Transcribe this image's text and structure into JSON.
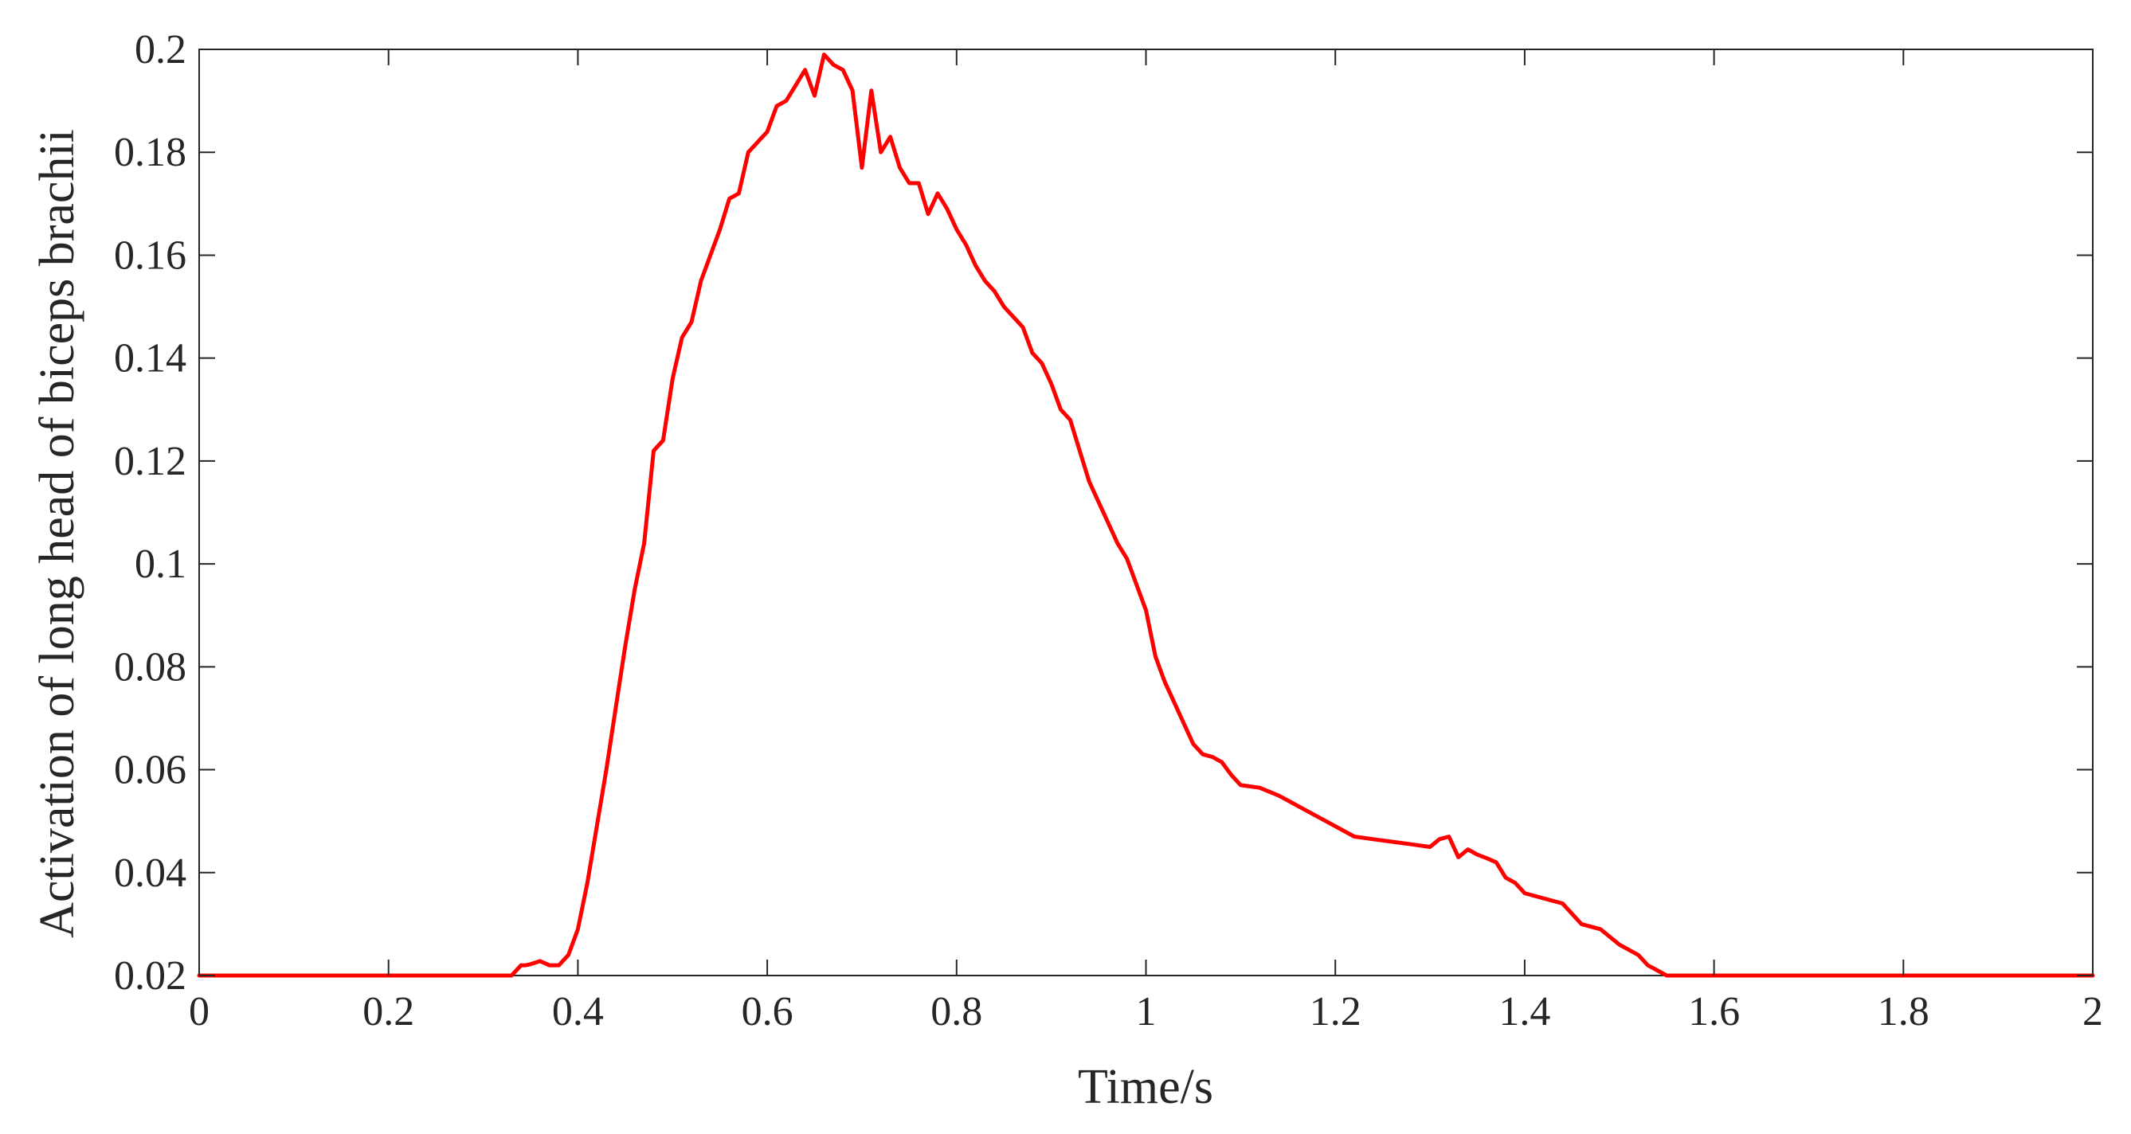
{
  "chart_data": {
    "type": "line",
    "title": "",
    "xlabel": "Time/s",
    "ylabel": "Activation of long head of biceps brachii",
    "xlim": [
      0,
      2
    ],
    "ylim": [
      0.02,
      0.2
    ],
    "xticks": [
      0,
      0.2,
      0.4,
      0.6,
      0.8,
      1,
      1.2,
      1.4,
      1.6,
      1.8,
      2
    ],
    "xtick_labels": [
      "0",
      "0.2",
      "0.4",
      "0.6",
      "0.8",
      "1",
      "1.2",
      "1.4",
      "1.6",
      "1.8",
      "2"
    ],
    "yticks": [
      0.02,
      0.04,
      0.06,
      0.08,
      0.1,
      0.12,
      0.14,
      0.16,
      0.18,
      0.2
    ],
    "ytick_labels": [
      "0.02",
      "0.04",
      "0.06",
      "0.08",
      "0.1",
      "0.12",
      "0.14",
      "0.16",
      "0.18",
      "0.2"
    ],
    "grid": false,
    "legend": false,
    "line_color": "#ff0000",
    "axis_color": "#262626",
    "series": [
      {
        "x": [
          0,
          0.33,
          0.34,
          0.345,
          0.35,
          0.36,
          0.37,
          0.38,
          0.39,
          0.4,
          0.41,
          0.42,
          0.43,
          0.44,
          0.45,
          0.46,
          0.47,
          0.48,
          0.49,
          0.5,
          0.51,
          0.52,
          0.53,
          0.54,
          0.55,
          0.56,
          0.57,
          0.58,
          0.59,
          0.6,
          0.61,
          0.62,
          0.63,
          0.64,
          0.65,
          0.66,
          0.67,
          0.68,
          0.69,
          0.7,
          0.71,
          0.72,
          0.73,
          0.74,
          0.75,
          0.76,
          0.77,
          0.78,
          0.79,
          0.8,
          0.81,
          0.82,
          0.83,
          0.84,
          0.85,
          0.86,
          0.87,
          0.88,
          0.89,
          0.9,
          0.91,
          0.92,
          0.93,
          0.94,
          0.95,
          0.96,
          0.97,
          0.98,
          0.99,
          1.0,
          1.01,
          1.02,
          1.03,
          1.04,
          1.05,
          1.06,
          1.07,
          1.08,
          1.09,
          1.1,
          1.12,
          1.14,
          1.15,
          1.16,
          1.18,
          1.2,
          1.22,
          1.24,
          1.26,
          1.28,
          1.3,
          1.31,
          1.32,
          1.33,
          1.34,
          1.35,
          1.36,
          1.37,
          1.38,
          1.39,
          1.4,
          1.42,
          1.44,
          1.46,
          1.48,
          1.5,
          1.52,
          1.53,
          1.54,
          1.55,
          1.6,
          1.8,
          2.0
        ],
        "y": [
          0.02,
          0.02,
          0.022,
          0.022,
          0.0222,
          0.0228,
          0.022,
          0.022,
          0.024,
          0.029,
          0.038,
          0.049,
          0.06,
          0.072,
          0.084,
          0.095,
          0.104,
          0.122,
          0.124,
          0.136,
          0.144,
          0.147,
          0.155,
          0.16,
          0.165,
          0.171,
          0.172,
          0.18,
          0.182,
          0.184,
          0.189,
          0.19,
          0.193,
          0.196,
          0.191,
          0.199,
          0.197,
          0.196,
          0.192,
          0.177,
          0.192,
          0.18,
          0.183,
          0.177,
          0.174,
          0.174,
          0.168,
          0.172,
          0.169,
          0.165,
          0.162,
          0.158,
          0.155,
          0.153,
          0.15,
          0.148,
          0.146,
          0.141,
          0.139,
          0.135,
          0.13,
          0.128,
          0.122,
          0.116,
          0.112,
          0.108,
          0.104,
          0.101,
          0.096,
          0.091,
          0.082,
          0.077,
          0.073,
          0.069,
          0.065,
          0.063,
          0.0625,
          0.0615,
          0.059,
          0.057,
          0.0565,
          0.055,
          0.054,
          0.053,
          0.051,
          0.049,
          0.047,
          0.0465,
          0.046,
          0.0455,
          0.045,
          0.0465,
          0.047,
          0.043,
          0.0445,
          0.0435,
          0.0428,
          0.042,
          0.039,
          0.038,
          0.036,
          0.035,
          0.034,
          0.03,
          0.029,
          0.026,
          0.024,
          0.022,
          0.021,
          0.02,
          0.02,
          0.02,
          0.02
        ]
      }
    ]
  }
}
